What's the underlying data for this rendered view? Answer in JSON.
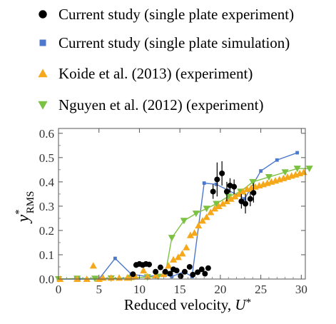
{
  "chart_data": {
    "type": "scatter",
    "xlabel": "Reduced velocity, U*",
    "ylabel": "y*RMS",
    "xlim": [
      0,
      30.5
    ],
    "ylim": [
      0,
      0.62
    ],
    "xticks": [
      "0",
      "5",
      "10",
      "15",
      "20",
      "25",
      "30"
    ],
    "yticks": [
      "0.0",
      "0.1",
      "0.2",
      "0.3",
      "0.4",
      "0.5",
      "0.6"
    ],
    "legend_position": "top",
    "grid": false,
    "series": [
      {
        "name": "Current study (single plate experiment)",
        "marker": "circle",
        "color": "#000000",
        "line": false,
        "x": [
          9.2,
          9.6,
          10.0,
          10.4,
          10.8,
          11.2,
          12.0,
          12.6,
          13.2,
          13.8,
          14.2,
          14.6,
          15.1,
          15.6,
          16.2,
          16.6,
          17.2,
          17.7,
          18.1,
          18.5,
          19.1,
          19.6,
          20.2,
          20.8,
          21.2,
          21.7,
          22.6,
          23.1,
          23.7,
          24.1
        ],
        "y": [
          0.02,
          0.058,
          0.062,
          0.058,
          0.062,
          0.06,
          0.03,
          0.048,
          0.03,
          0.022,
          0.04,
          0.035,
          0.012,
          0.03,
          0.05,
          0.018,
          0.028,
          0.04,
          0.022,
          0.045,
          0.36,
          0.41,
          0.435,
          0.36,
          0.385,
          0.38,
          0.32,
          0.31,
          0.33,
          0.355
        ],
        "yerr": [
          0.01,
          0.012,
          0.01,
          0.01,
          0.01,
          0.01,
          0.008,
          0.01,
          0.008,
          0.008,
          0.01,
          0.01,
          0.006,
          0.008,
          0.01,
          0.006,
          0.008,
          0.01,
          0.008,
          0.01,
          0.03,
          0.07,
          0.05,
          0.04,
          0.03,
          0.03,
          0.03,
          0.04,
          0.03,
          0.04
        ]
      },
      {
        "name": "Current study (single plate simulation)",
        "marker": "square",
        "color": "#4d79cc",
        "line": true,
        "x": [
          0,
          2.5,
          5,
          7,
          9,
          11,
          13,
          14,
          15.5,
          16.5,
          18,
          19.5,
          21,
          23,
          25,
          27,
          29.5
        ],
        "y": [
          0,
          0,
          0,
          0.085,
          0.02,
          0.01,
          0.02,
          0.01,
          0.03,
          0.01,
          0.395,
          0.39,
          0.365,
          0.33,
          0.445,
          0.49,
          0.52
        ]
      },
      {
        "name": "Koide et al. (2013) (experiment)",
        "marker": "triangle-up",
        "color": "#f4a81a",
        "line": false,
        "x": [
          0.2,
          2.3,
          3.5,
          4.3,
          5.0,
          5.5,
          6.5,
          7.5,
          8.5,
          9.0,
          9.5,
          10.5,
          11.0,
          12.0,
          13.0,
          13.6,
          14.2,
          14.8,
          15.3,
          15.8,
          16.3,
          16.8,
          17.3,
          17.8,
          18.3,
          18.8,
          19.3,
          19.8,
          20.3,
          20.8,
          21.3,
          21.8,
          22.3,
          22.8,
          23.3,
          23.8,
          24.3,
          24.8,
          25.3,
          25.8,
          26.3,
          26.8,
          27.3,
          27.8,
          28.3,
          28.8,
          29.3,
          29.8,
          30.3
        ],
        "y": [
          0.0,
          0.0,
          0.0,
          0.055,
          0.0,
          0.005,
          0.005,
          0.005,
          0.005,
          0.008,
          0.01,
          0.035,
          0.01,
          0.015,
          0.02,
          0.055,
          0.08,
          0.09,
          0.105,
          0.13,
          0.18,
          0.19,
          0.22,
          0.24,
          0.255,
          0.275,
          0.29,
          0.3,
          0.31,
          0.32,
          0.33,
          0.34,
          0.35,
          0.36,
          0.37,
          0.375,
          0.38,
          0.385,
          0.39,
          0.395,
          0.4,
          0.405,
          0.41,
          0.415,
          0.42,
          0.425,
          0.43,
          0.435,
          0.44
        ]
      },
      {
        "name": "Nguyen et al. (2012) (experiment)",
        "marker": "triangle-down",
        "color": "#7bc142",
        "line": true,
        "x": [
          0,
          2.3,
          4.5,
          6.5,
          9.0,
          11.0,
          12.3,
          13.2,
          14.0,
          15.5,
          17.0,
          18.3,
          19.5,
          21.0,
          22.5,
          24.0,
          26.0,
          28.0,
          29.5,
          31.0
        ],
        "y": [
          0.0,
          0.002,
          0.002,
          0.003,
          0.005,
          0.008,
          0.01,
          0.02,
          0.17,
          0.24,
          0.27,
          0.29,
          0.31,
          0.34,
          0.36,
          0.4,
          0.42,
          0.44,
          0.455,
          0.455
        ]
      }
    ]
  }
}
